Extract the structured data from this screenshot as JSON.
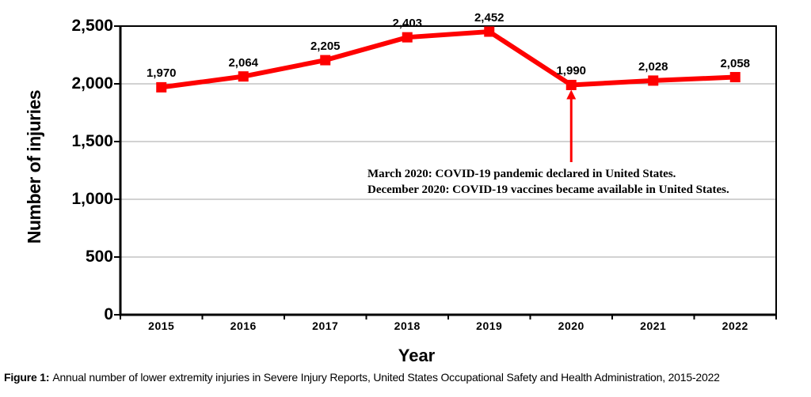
{
  "figure": {
    "caption_label": "Figure 1:",
    "caption_text": "Annual number of lower extremity injuries in Severe Injury Reports, United States Occupational Safety and Health Administration, 2015-2022"
  },
  "annotation": {
    "line1": "March 2020: COVID-19 pandemic declared in United States.",
    "line2": "December 2020: COVID-19 vaccines became available in United States.",
    "arrow_target_year": "2020",
    "arrow_color": "#fe0000"
  },
  "chart_data": {
    "type": "line",
    "x": [
      "2015",
      "2016",
      "2017",
      "2018",
      "2019",
      "2020",
      "2021",
      "2022"
    ],
    "series": [
      {
        "name": "Number of injuries",
        "values": [
          1970,
          2064,
          2205,
          2403,
          2452,
          1990,
          2028,
          2058
        ],
        "color": "#fe0000",
        "marker": "square"
      }
    ],
    "point_labels": [
      "1,970",
      "2,064",
      "2,205",
      "2,403",
      "2,452",
      "1,990",
      "2,028",
      "2,058"
    ],
    "title": "",
    "xlabel": "Year",
    "ylabel": "Number of injuries",
    "ylim": [
      0,
      2500
    ],
    "ytick_interval": 500,
    "ytick_labels": [
      "0",
      "500",
      "1,000",
      "1,500",
      "2,000",
      "2,500"
    ],
    "grid": "horizontal-only",
    "legend": "none",
    "gridline_color": "#a6a6a6",
    "axis_color": "#000000"
  }
}
